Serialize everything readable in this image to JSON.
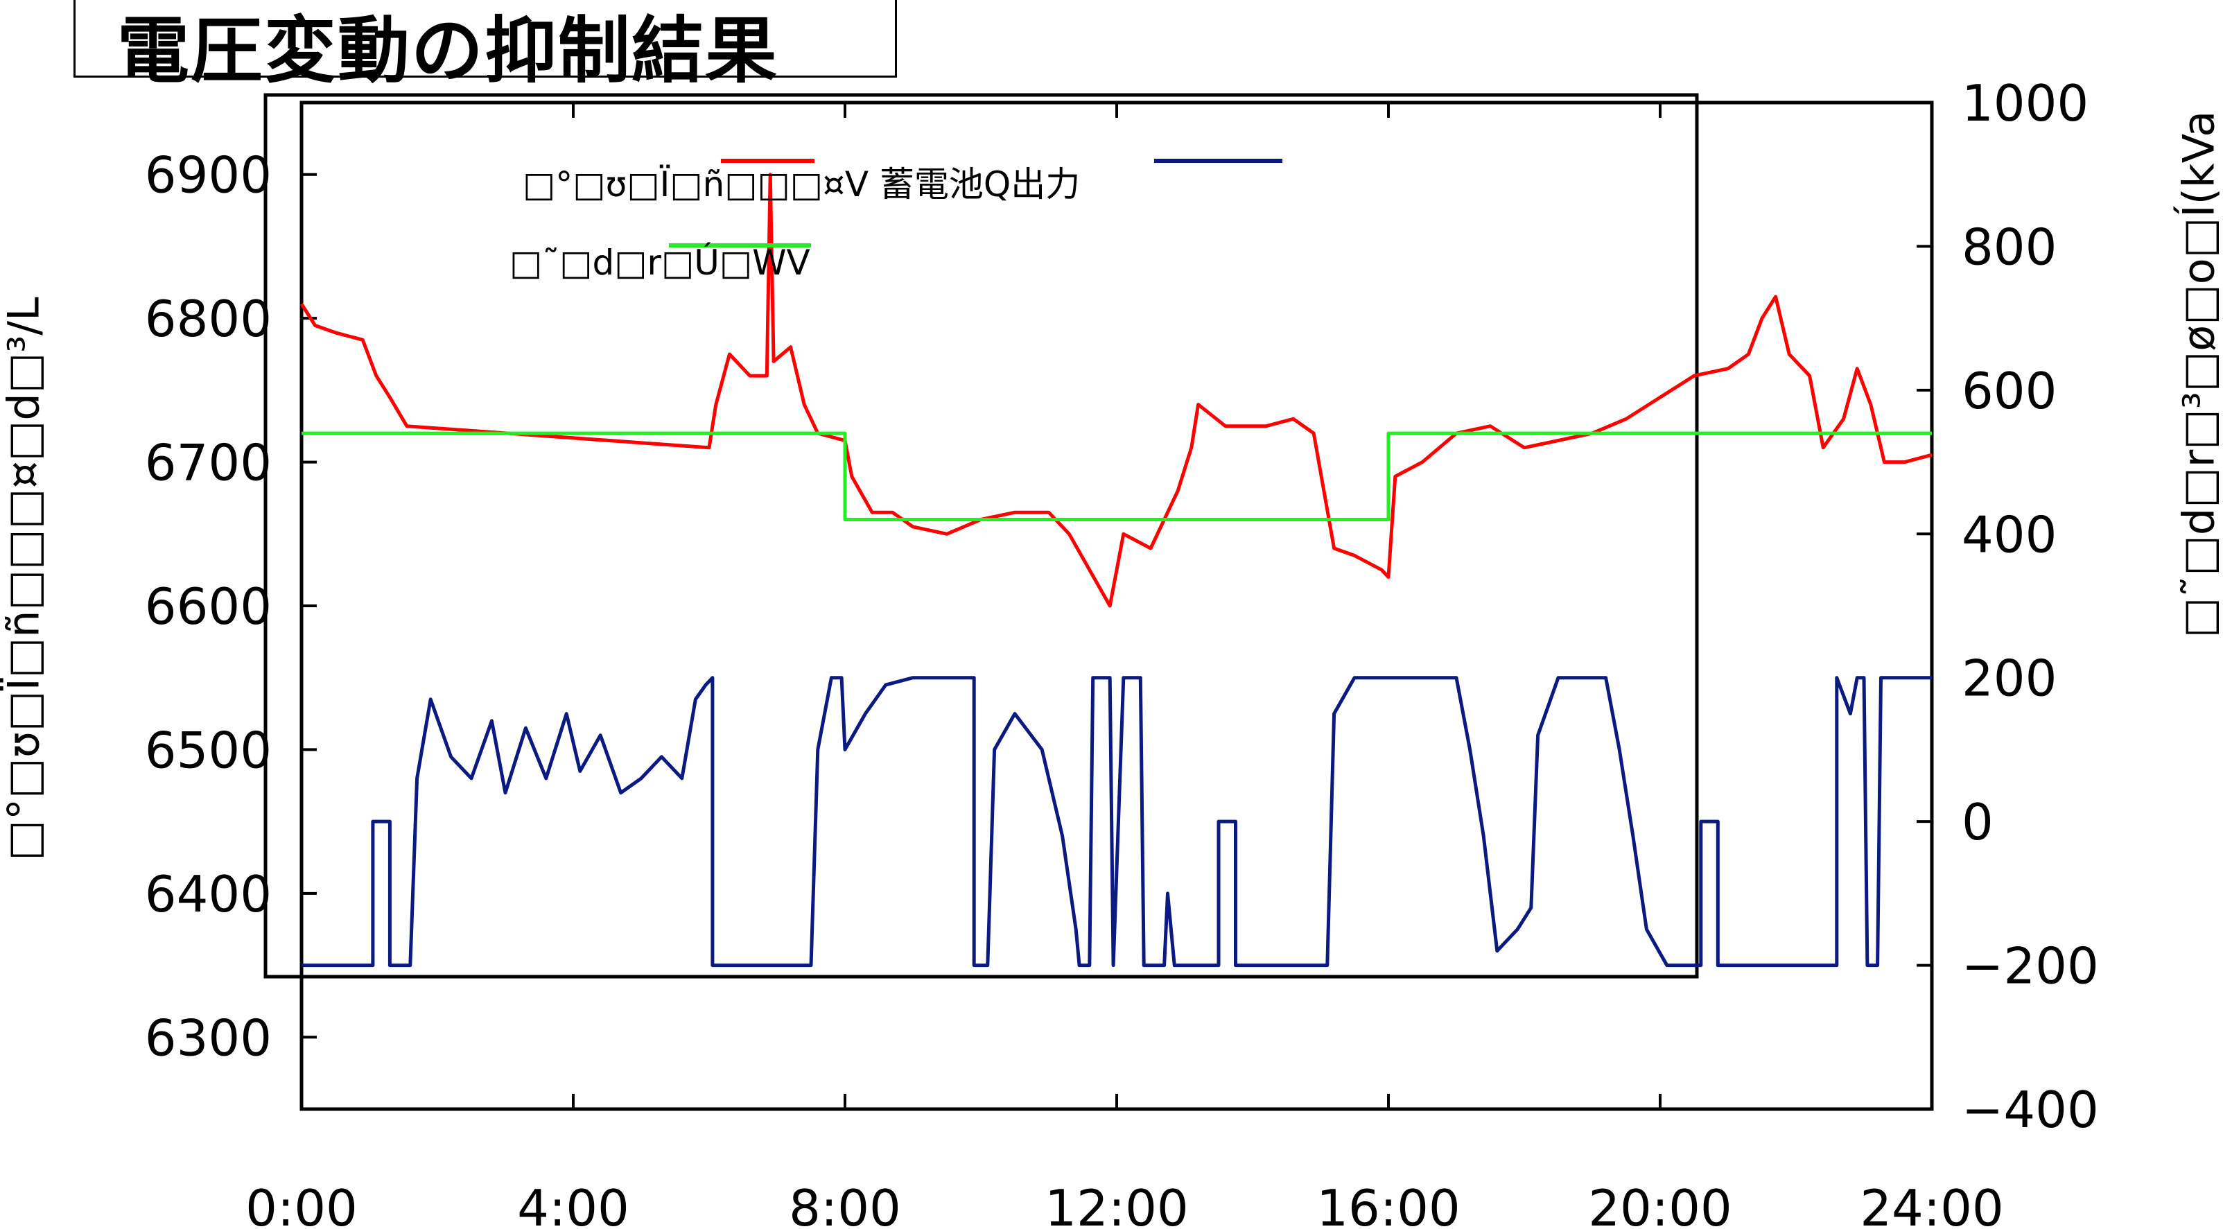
{
  "chart_data": {
    "type": "line",
    "title": "電圧変動の抑制結果",
    "xlabel": "",
    "ylabel_left": "□°□ʊ□Ï□ñ□□□¤□d□³/L",
    "ylabel_right": "□˜□d□r□³□ø□o□Í(kVa",
    "x_ticks": [
      "0:00",
      "4:00",
      "8:00",
      "12:00",
      "16:00",
      "20:00",
      "24:00"
    ],
    "xlim_hours": [
      0,
      24
    ],
    "y_left_ticks": [
      "6300",
      "6400",
      "6500",
      "6600",
      "6700",
      "6800",
      "6900"
    ],
    "ylim_left": [
      6250,
      6950
    ],
    "y_right_ticks": [
      "-400",
      "-200",
      "0",
      "200",
      "400",
      "600",
      "800",
      "1000"
    ],
    "ylim_right": [
      -400,
      1000
    ],
    "grid": false,
    "legend_position": "top-center",
    "series": [
      {
        "name": "□°□ʊ□Ï□ñ□□□¤V",
        "axis": "left",
        "color": "#ff0000",
        "points": [
          [
            0,
            6810
          ],
          [
            0.2,
            6795
          ],
          [
            0.5,
            6790
          ],
          [
            0.9,
            6785
          ],
          [
            1.1,
            6760
          ],
          [
            1.3,
            6745
          ],
          [
            1.55,
            6725
          ],
          [
            6.0,
            6710
          ],
          [
            6.1,
            6740
          ],
          [
            6.3,
            6775
          ],
          [
            6.6,
            6760
          ],
          [
            6.85,
            6760
          ],
          [
            6.9,
            6900
          ],
          [
            6.95,
            6770
          ],
          [
            7.2,
            6780
          ],
          [
            7.4,
            6740
          ],
          [
            7.6,
            6720
          ],
          [
            8.0,
            6715
          ],
          [
            8.1,
            6690
          ],
          [
            8.4,
            6665
          ],
          [
            8.7,
            6665
          ],
          [
            9.0,
            6655
          ],
          [
            9.5,
            6650
          ],
          [
            10.0,
            6660
          ],
          [
            10.5,
            6665
          ],
          [
            11.0,
            6665
          ],
          [
            11.3,
            6650
          ],
          [
            11.6,
            6625
          ],
          [
            11.9,
            6600
          ],
          [
            12.1,
            6650
          ],
          [
            12.5,
            6640
          ],
          [
            12.9,
            6680
          ],
          [
            13.1,
            6710
          ],
          [
            13.2,
            6740
          ],
          [
            13.6,
            6725
          ],
          [
            14.2,
            6725
          ],
          [
            14.6,
            6730
          ],
          [
            14.9,
            6720
          ],
          [
            15.2,
            6640
          ],
          [
            15.5,
            6635
          ],
          [
            15.9,
            6625
          ],
          [
            16.0,
            6620
          ],
          [
            16.1,
            6690
          ],
          [
            16.5,
            6700
          ],
          [
            17.0,
            6720
          ],
          [
            17.5,
            6725
          ],
          [
            18.0,
            6710
          ],
          [
            18.5,
            6715
          ],
          [
            19.0,
            6720
          ],
          [
            19.5,
            6730
          ],
          [
            20.0,
            6745
          ],
          [
            20.5,
            6760
          ],
          [
            21.0,
            6765
          ],
          [
            21.3,
            6775
          ],
          [
            21.5,
            6800
          ],
          [
            21.7,
            6815
          ],
          [
            21.9,
            6775
          ],
          [
            22.2,
            6760
          ],
          [
            22.4,
            6710
          ],
          [
            22.7,
            6730
          ],
          [
            22.9,
            6765
          ],
          [
            23.1,
            6740
          ],
          [
            23.3,
            6700
          ],
          [
            23.6,
            6700
          ],
          [
            24.0,
            6705
          ]
        ]
      },
      {
        "name": "蓄電池Q出力",
        "axis": "right",
        "color": "#0a1a80",
        "points": [
          [
            0,
            -200
          ],
          [
            1.05,
            -200
          ],
          [
            1.05,
            0
          ],
          [
            1.3,
            0
          ],
          [
            1.3,
            -200
          ],
          [
            1.6,
            -200
          ],
          [
            1.7,
            60
          ],
          [
            1.9,
            170
          ],
          [
            2.2,
            90
          ],
          [
            2.5,
            60
          ],
          [
            2.8,
            140
          ],
          [
            3.0,
            40
          ],
          [
            3.3,
            130
          ],
          [
            3.6,
            60
          ],
          [
            3.9,
            150
          ],
          [
            4.1,
            70
          ],
          [
            4.4,
            120
          ],
          [
            4.7,
            40
          ],
          [
            5.0,
            60
          ],
          [
            5.3,
            90
          ],
          [
            5.6,
            60
          ],
          [
            5.8,
            170
          ],
          [
            5.95,
            190
          ],
          [
            6.05,
            200
          ],
          [
            6.05,
            -200
          ],
          [
            7.5,
            -200
          ],
          [
            7.6,
            100
          ],
          [
            7.8,
            200
          ],
          [
            7.95,
            200
          ],
          [
            8.0,
            100
          ],
          [
            8.3,
            150
          ],
          [
            8.6,
            190
          ],
          [
            9.0,
            200
          ],
          [
            9.5,
            200
          ],
          [
            9.9,
            200
          ],
          [
            9.9,
            -200
          ],
          [
            10.1,
            -200
          ],
          [
            10.2,
            100
          ],
          [
            10.5,
            150
          ],
          [
            10.9,
            100
          ],
          [
            11.2,
            -20
          ],
          [
            11.4,
            -150
          ],
          [
            11.45,
            -200
          ],
          [
            11.6,
            -200
          ],
          [
            11.65,
            200
          ],
          [
            11.9,
            200
          ],
          [
            11.95,
            -200
          ],
          [
            12.1,
            200
          ],
          [
            12.35,
            200
          ],
          [
            12.4,
            -200
          ],
          [
            12.7,
            -200
          ],
          [
            12.75,
            -100
          ],
          [
            12.85,
            -200
          ],
          [
            13.5,
            -200
          ],
          [
            13.5,
            0
          ],
          [
            13.75,
            0
          ],
          [
            13.75,
            -200
          ],
          [
            15.1,
            -200
          ],
          [
            15.2,
            150
          ],
          [
            15.5,
            200
          ],
          [
            16.5,
            200
          ],
          [
            17.0,
            200
          ],
          [
            17.2,
            100
          ],
          [
            17.4,
            -20
          ],
          [
            17.6,
            -180
          ],
          [
            17.9,
            -150
          ],
          [
            18.1,
            -120
          ],
          [
            18.2,
            120
          ],
          [
            18.5,
            200
          ],
          [
            19.2,
            200
          ],
          [
            19.4,
            100
          ],
          [
            19.6,
            -20
          ],
          [
            19.8,
            -150
          ],
          [
            20.1,
            -200
          ],
          [
            20.6,
            -200
          ],
          [
            20.6,
            0
          ],
          [
            20.85,
            0
          ],
          [
            20.85,
            -200
          ],
          [
            22.6,
            -200
          ],
          [
            22.6,
            200
          ],
          [
            22.8,
            150
          ],
          [
            22.9,
            200
          ],
          [
            23.0,
            200
          ],
          [
            23.05,
            -200
          ],
          [
            23.2,
            -200
          ],
          [
            23.25,
            200
          ],
          [
            24.0,
            200
          ]
        ]
      },
      {
        "name": "□˜□d□r□Ú□WV",
        "axis": "left",
        "color": "#22ee22",
        "points": [
          [
            0,
            6720
          ],
          [
            8,
            6720
          ],
          [
            8,
            6660
          ],
          [
            16,
            6660
          ],
          [
            16,
            6720
          ],
          [
            24,
            6720
          ]
        ]
      }
    ]
  }
}
